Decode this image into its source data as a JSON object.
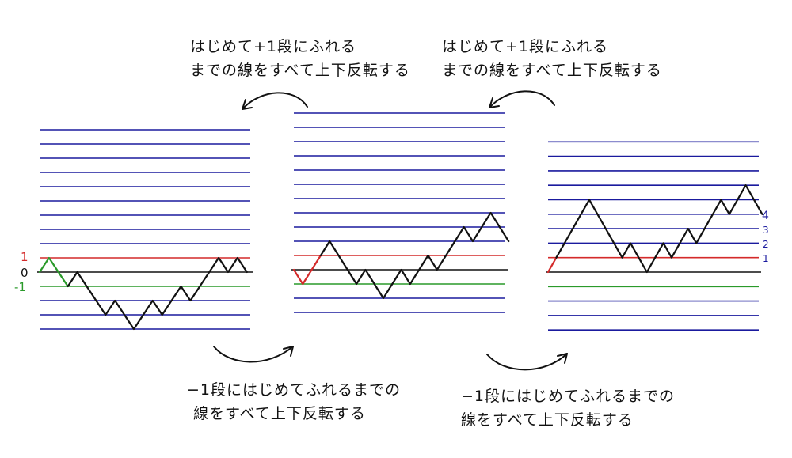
{
  "annotations": {
    "top_left": {
      "line1": "はじめて+1段にふれる",
      "line2": "までの線をすべて上下反転する"
    },
    "top_right": {
      "line1": "はじめて+1段にふれる",
      "line2": "までの線をすべて上下反転する"
    },
    "bottom_left": {
      "line1": "−1段にはじめてふれるまでの",
      "line2": "線をすべて上下反転する"
    },
    "bottom_right": {
      "line1": "−1段にはじめてふれるまでの",
      "line2": "線をすべて上下反転する"
    }
  },
  "panel1_labels": {
    "plus1": "1",
    "zero": "0",
    "minus1": "-1"
  },
  "panel3_labels": [
    "1",
    "2",
    "3",
    "4"
  ],
  "colors": {
    "grid": "#1a1a9e",
    "plus1_line": "#d42a2a",
    "minus1_line": "#2a9a2a",
    "zero_line": "#111111",
    "path": "#111111"
  },
  "panel1": {
    "levels_above": 10,
    "levels_below": 4,
    "path": [
      0,
      1,
      0,
      -1,
      0,
      -1,
      -2,
      -3,
      -2,
      -3,
      -4,
      -3,
      -2,
      -3,
      -2,
      -1,
      -2,
      -1,
      0,
      1,
      0,
      1,
      0
    ],
    "highlight_steps": 3,
    "highlight_color": "#2a9a2a"
  },
  "panel2": {
    "levels_above": 11,
    "levels_below": 3,
    "path": [
      0,
      -1,
      0,
      1,
      2,
      1,
      0,
      -1,
      0,
      -1,
      -2,
      -1,
      0,
      -1,
      0,
      1,
      0,
      1,
      2,
      3,
      2,
      3,
      4,
      3,
      2
    ],
    "highlight_steps": 3,
    "highlight_color": "#d42a2a"
  },
  "panel3": {
    "levels_above": 9,
    "levels_below": 4,
    "path": [
      0,
      1,
      2,
      3,
      4,
      5,
      4,
      3,
      2,
      1,
      2,
      1,
      0,
      1,
      2,
      1,
      2,
      3,
      2,
      3,
      4,
      5,
      4,
      5,
      6,
      5,
      4
    ],
    "highlight_steps": 1,
    "highlight_color": "#d42a2a"
  }
}
